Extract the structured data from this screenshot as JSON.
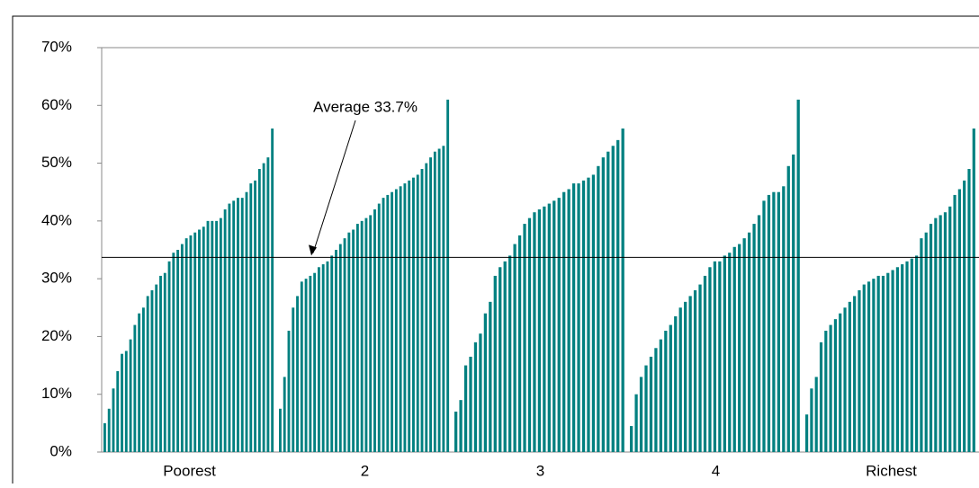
{
  "chart_data": {
    "type": "bar",
    "color": "#008080",
    "ylim": [
      0,
      70
    ],
    "yticks": [
      {
        "value": 0,
        "label": "0%"
      },
      {
        "value": 10,
        "label": "10%"
      },
      {
        "value": 20,
        "label": "20%"
      },
      {
        "value": 30,
        "label": "30%"
      },
      {
        "value": 40,
        "label": "40%"
      },
      {
        "value": 50,
        "label": "50%"
      },
      {
        "value": 60,
        "label": "60%"
      },
      {
        "value": 70,
        "label": "70%"
      }
    ],
    "reference_line": {
      "label": "Average 33.7%",
      "value": 33.7
    },
    "groups": [
      {
        "name": "Poorest",
        "values": [
          5,
          7.5,
          11,
          14,
          17,
          17.5,
          19.5,
          22,
          24,
          25,
          27,
          28,
          29,
          30.5,
          31,
          33,
          34.5,
          35,
          36,
          37,
          37.5,
          38,
          38.5,
          39,
          40,
          40,
          40,
          40.5,
          42,
          43,
          43.5,
          44,
          44,
          45,
          46.5,
          47,
          49,
          50,
          51,
          56
        ]
      },
      {
        "name": "2",
        "values": [
          7.5,
          13,
          21,
          25,
          27,
          29.5,
          30,
          30.5,
          31,
          32,
          32.5,
          33,
          34,
          35,
          36,
          37,
          38,
          38.5,
          39.5,
          40,
          40.5,
          41,
          42,
          43,
          44,
          44.5,
          45,
          45.5,
          46,
          46.5,
          47,
          47.5,
          48,
          49,
          50,
          51,
          52,
          52.5,
          53,
          61
        ]
      },
      {
        "name": "3",
        "values": [
          7,
          9,
          15,
          16.5,
          19,
          20.5,
          24,
          26,
          30.5,
          32,
          33,
          34,
          36,
          37.5,
          39.5,
          40.5,
          41.5,
          42,
          42.5,
          43,
          43.5,
          44,
          45,
          45.5,
          46.5,
          46.5,
          47,
          47.5,
          48,
          49.5,
          51,
          52,
          53,
          54,
          56
        ]
      },
      {
        "name": "4",
        "values": [
          4.5,
          10,
          13,
          15,
          16.5,
          18,
          19.5,
          21,
          22,
          23.5,
          25,
          26,
          27,
          28,
          29,
          30.5,
          32,
          33,
          33,
          34,
          34.5,
          35.5,
          36,
          37,
          38,
          39.5,
          41,
          43.5,
          44.5,
          45,
          45,
          46,
          49.5,
          51.5,
          61
        ]
      },
      {
        "name": "Richest",
        "values": [
          6.5,
          11,
          13,
          19,
          21,
          22,
          23,
          24,
          25,
          26,
          27,
          28,
          29,
          29.5,
          30,
          30.5,
          30.5,
          31,
          31.5,
          32,
          32.5,
          33,
          33.5,
          34,
          37,
          38,
          39.5,
          40.5,
          41,
          41.5,
          42.5,
          44.5,
          45.5,
          47,
          49,
          56
        ]
      }
    ]
  }
}
